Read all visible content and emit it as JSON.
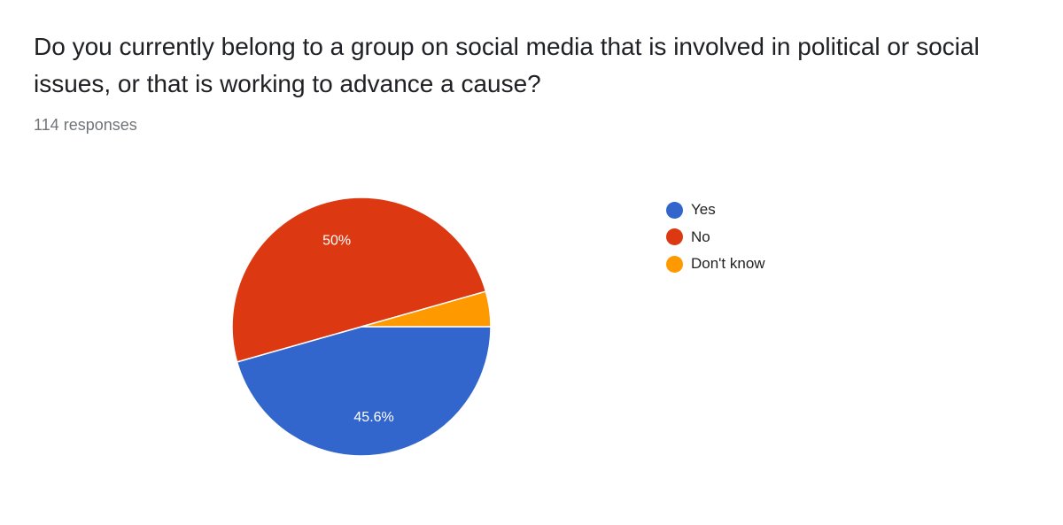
{
  "question": "Do you currently belong to a group on social media that is involved in political or social issues, or that is working to advance a cause?",
  "responses_label": "114 responses",
  "chart_data": {
    "type": "pie",
    "total_responses": 114,
    "slices": [
      {
        "label": "Yes",
        "percent": 45.6,
        "count": 52,
        "color": "#3366cc",
        "data_label": "45.6%"
      },
      {
        "label": "No",
        "percent": 50.0,
        "count": 57,
        "color": "#dc3912",
        "data_label": "50%"
      },
      {
        "label": "Don't know",
        "percent": 4.4,
        "count": 5,
        "color": "#ff9900",
        "data_label": ""
      }
    ],
    "legend": [
      "Yes",
      "No",
      "Don't know"
    ],
    "legend_position": "right"
  }
}
